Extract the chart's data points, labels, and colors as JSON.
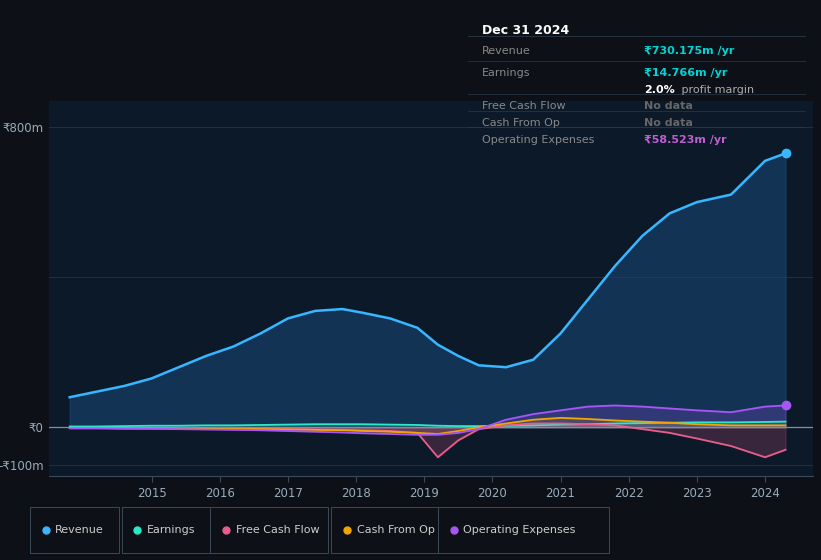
{
  "background_color": "#0d1117",
  "plot_bg_color": "#0b1929",
  "ytick_labels": [
    "₹800m",
    "₹0",
    "-₹100m"
  ],
  "ytick_values": [
    800,
    0,
    -100
  ],
  "xtick_labels": [
    "2015",
    "2016",
    "2017",
    "2018",
    "2019",
    "2020",
    "2021",
    "2022",
    "2023",
    "2024"
  ],
  "xtick_positions": [
    2015,
    2016,
    2017,
    2018,
    2019,
    2020,
    2021,
    2022,
    2023,
    2024
  ],
  "legend": [
    {
      "label": "Revenue",
      "color": "#38b6ff"
    },
    {
      "label": "Earnings",
      "color": "#2de8c8"
    },
    {
      "label": "Free Cash Flow",
      "color": "#e85d8a"
    },
    {
      "label": "Cash From Op",
      "color": "#f0a500"
    },
    {
      "label": "Operating Expenses",
      "color": "#a855f7"
    }
  ],
  "years": [
    2013.8,
    2014.2,
    2014.6,
    2015.0,
    2015.4,
    2015.8,
    2016.2,
    2016.6,
    2017.0,
    2017.4,
    2017.8,
    2018.1,
    2018.5,
    2018.9,
    2019.2,
    2019.5,
    2019.8,
    2020.2,
    2020.6,
    2021.0,
    2021.4,
    2021.8,
    2022.2,
    2022.6,
    2023.0,
    2023.5,
    2024.0,
    2024.3
  ],
  "revenue": [
    80,
    95,
    110,
    130,
    160,
    190,
    215,
    250,
    290,
    310,
    315,
    305,
    290,
    265,
    220,
    190,
    165,
    160,
    180,
    250,
    340,
    430,
    510,
    570,
    600,
    620,
    710,
    730
  ],
  "earnings": [
    2,
    2,
    3,
    4,
    4,
    5,
    5,
    6,
    7,
    8,
    8,
    8,
    7,
    6,
    4,
    3,
    3,
    4,
    5,
    7,
    8,
    10,
    11,
    12,
    13,
    13,
    14,
    15
  ],
  "free_cash_flow": [
    -2,
    -2,
    -2,
    -3,
    -3,
    -4,
    -4,
    -5,
    -5,
    -6,
    -7,
    -8,
    -10,
    -15,
    -80,
    -35,
    -5,
    5,
    10,
    10,
    8,
    5,
    -5,
    -15,
    -30,
    -50,
    -80,
    -60
  ],
  "cash_from_op": [
    -2,
    -2,
    -3,
    -3,
    -4,
    -4,
    -5,
    -5,
    -6,
    -7,
    -8,
    -10,
    -12,
    -15,
    -18,
    -10,
    0,
    10,
    20,
    25,
    22,
    18,
    15,
    12,
    8,
    5,
    5,
    5
  ],
  "operating_expenses": [
    -3,
    -3,
    -4,
    -4,
    -5,
    -6,
    -7,
    -8,
    -10,
    -12,
    -14,
    -16,
    -18,
    -20,
    -20,
    -15,
    -5,
    20,
    35,
    45,
    55,
    58,
    55,
    50,
    45,
    40,
    55,
    58
  ],
  "grid_color": "#1e3048",
  "zero_line_color": "#8090a0",
  "revenue_fill_color": "#1a4a7a",
  "info_box": {
    "date": "Dec 31 2024",
    "date_color": "#ffffff",
    "label_color": "#888888",
    "bg_color": "#060e18",
    "border_color": "#2a3a4a",
    "rows": [
      {
        "label": "Revenue",
        "value": "₹730.175m /yr",
        "value_color": "#00d4d4"
      },
      {
        "label": "Earnings",
        "value": "₹14.766m /yr",
        "value_color": "#00d4d4"
      },
      {
        "label": "",
        "value": "2.0% profit margin",
        "value_color": "#ffffff"
      },
      {
        "label": "Free Cash Flow",
        "value": "No data",
        "value_color": "#666666"
      },
      {
        "label": "Cash From Op",
        "value": "No data",
        "value_color": "#666666"
      },
      {
        "label": "Operating Expenses",
        "value": "₹58.523m /yr",
        "value_color": "#bf5fd0"
      }
    ]
  }
}
